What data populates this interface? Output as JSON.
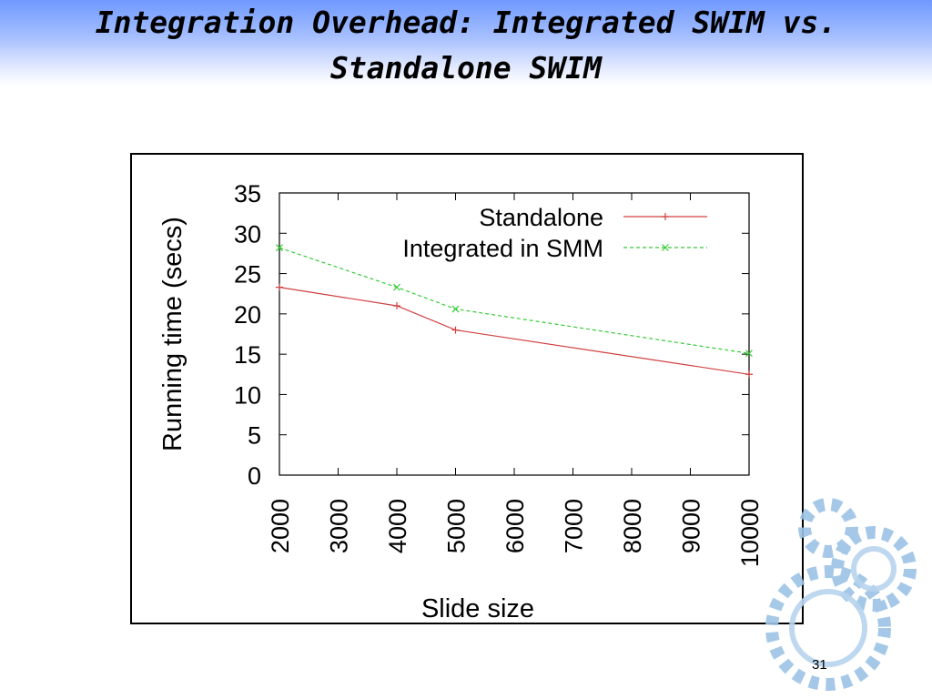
{
  "slide": {
    "title_line1": "Integration Overhead: Integrated SWIM vs.",
    "title_line2": "Standalone SWIM",
    "page_number": "31"
  },
  "colors": {
    "header_gradient_top": "#6f99ff",
    "standalone": "#d04040",
    "integrated": "#33cc33",
    "gear": "#9cc3e6"
  },
  "chart_data": {
    "type": "line",
    "xlabel": "Slide size",
    "ylabel": "Running time (secs)",
    "xlim": [
      2000,
      10000
    ],
    "ylim": [
      0,
      35
    ],
    "xticks": [
      "2000",
      "3000",
      "4000",
      "5000",
      "6000",
      "7000",
      "8000",
      "9000",
      "10000"
    ],
    "yticks": [
      "0",
      "5",
      "10",
      "15",
      "20",
      "25",
      "30",
      "35"
    ],
    "legend_position": "top-right",
    "grid": false,
    "series": [
      {
        "name": "Standalone",
        "marker": "+",
        "style": "solid",
        "x": [
          2000,
          4000,
          5000,
          10000
        ],
        "y": [
          23.3,
          21.0,
          18.0,
          12.5
        ]
      },
      {
        "name": "Integrated in SMM",
        "marker": "x",
        "style": "dashed",
        "x": [
          2000,
          4000,
          5000,
          10000
        ],
        "y": [
          28.2,
          23.3,
          20.6,
          15.1
        ]
      }
    ]
  }
}
